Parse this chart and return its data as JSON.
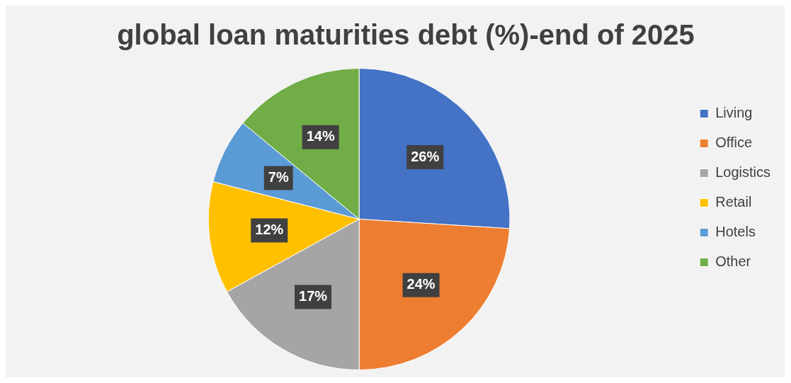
{
  "chart_data": {
    "type": "pie",
    "title": "global loan maturities debt (%)-end of 2025",
    "categories": [
      "Living",
      "Office",
      "Logistics",
      "Retail",
      "Hotels",
      "Other"
    ],
    "values": [
      26,
      24,
      17,
      12,
      7,
      14
    ],
    "colors": [
      "#4472c4",
      "#ed7d31",
      "#a5a5a5",
      "#ffc000",
      "#5b9bd5",
      "#70ad47"
    ],
    "value_labels": [
      "26%",
      "24%",
      "17%",
      "12%",
      "7%",
      "14%"
    ],
    "legend": "right"
  }
}
